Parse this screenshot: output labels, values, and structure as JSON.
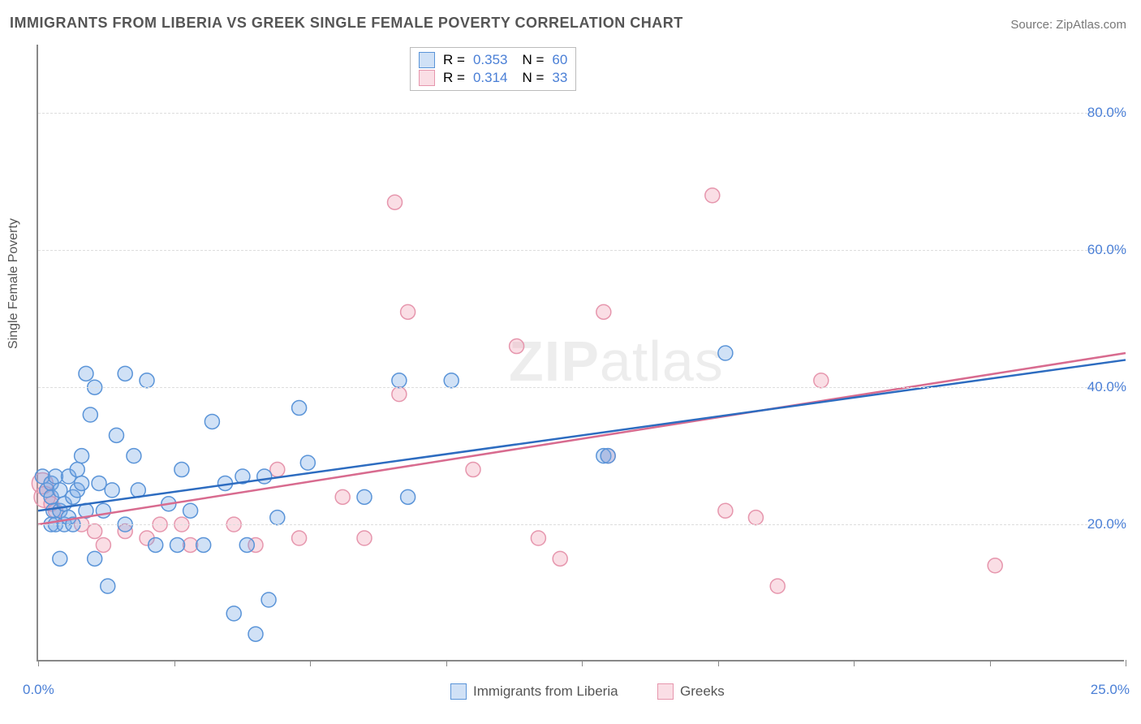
{
  "title": "IMMIGRANTS FROM LIBERIA VS GREEK SINGLE FEMALE POVERTY CORRELATION CHART",
  "source_label": "Source:",
  "source_name": "ZipAtlas.com",
  "watermark_zip": "ZIP",
  "watermark_atlas": "atlas",
  "chart": {
    "type": "scatter",
    "ylabel": "Single Female Poverty",
    "xlim": [
      0,
      25
    ],
    "ylim": [
      0,
      90
    ],
    "y_gridlines": [
      20,
      40,
      60,
      80
    ],
    "y_ticklabels": [
      "20.0%",
      "40.0%",
      "60.0%",
      "80.0%"
    ],
    "x_tick_positions": [
      0,
      3.125,
      6.25,
      9.375,
      12.5,
      15.625,
      18.75,
      21.875,
      25
    ],
    "x_min_label": "0.0%",
    "x_max_label": "25.0%",
    "grid_color": "#dddddd",
    "axis_color": "#888888",
    "background_color": "#ffffff",
    "title_fontsize": 18,
    "label_fontsize": 16,
    "tick_fontsize": 17,
    "tick_color": "#4a7fd6",
    "marker_radius": 9,
    "marker_radius_large": 13,
    "line_width": 2.5,
    "series": [
      {
        "name": "Immigrants from Liberia",
        "fill": "rgba(120,170,230,0.35)",
        "stroke": "#5a94d8",
        "line_color": "#2d6cc0",
        "R": "0.353",
        "N": "60",
        "trend": {
          "x1": 0,
          "y1": 22,
          "x2": 25,
          "y2": 44
        },
        "points": [
          {
            "x": 0.1,
            "y": 27
          },
          {
            "x": 0.2,
            "y": 25
          },
          {
            "x": 0.3,
            "y": 26
          },
          {
            "x": 0.3,
            "y": 24
          },
          {
            "x": 0.3,
            "y": 20
          },
          {
            "x": 0.35,
            "y": 22
          },
          {
            "x": 0.4,
            "y": 27
          },
          {
            "x": 0.4,
            "y": 20
          },
          {
            "x": 0.5,
            "y": 22
          },
          {
            "x": 0.5,
            "y": 25
          },
          {
            "x": 0.5,
            "y": 15
          },
          {
            "x": 0.6,
            "y": 23
          },
          {
            "x": 0.6,
            "y": 20
          },
          {
            "x": 0.7,
            "y": 27
          },
          {
            "x": 0.7,
            "y": 21
          },
          {
            "x": 0.8,
            "y": 24
          },
          {
            "x": 0.8,
            "y": 20
          },
          {
            "x": 0.9,
            "y": 28
          },
          {
            "x": 0.9,
            "y": 25
          },
          {
            "x": 1.0,
            "y": 30
          },
          {
            "x": 1.0,
            "y": 26
          },
          {
            "x": 1.1,
            "y": 42
          },
          {
            "x": 1.1,
            "y": 22
          },
          {
            "x": 1.2,
            "y": 36
          },
          {
            "x": 1.3,
            "y": 40
          },
          {
            "x": 1.3,
            "y": 15
          },
          {
            "x": 1.4,
            "y": 26
          },
          {
            "x": 1.5,
            "y": 22
          },
          {
            "x": 1.6,
            "y": 11
          },
          {
            "x": 1.7,
            "y": 25
          },
          {
            "x": 1.8,
            "y": 33
          },
          {
            "x": 2.0,
            "y": 42
          },
          {
            "x": 2.0,
            "y": 20
          },
          {
            "x": 2.2,
            "y": 30
          },
          {
            "x": 2.3,
            "y": 25
          },
          {
            "x": 2.5,
            "y": 41
          },
          {
            "x": 2.7,
            "y": 17
          },
          {
            "x": 3.0,
            "y": 23
          },
          {
            "x": 3.2,
            "y": 17
          },
          {
            "x": 3.3,
            "y": 28
          },
          {
            "x": 3.5,
            "y": 22
          },
          {
            "x": 3.8,
            "y": 17
          },
          {
            "x": 4.0,
            "y": 35
          },
          {
            "x": 4.3,
            "y": 26
          },
          {
            "x": 4.5,
            "y": 7
          },
          {
            "x": 4.7,
            "y": 27
          },
          {
            "x": 4.8,
            "y": 17
          },
          {
            "x": 5.0,
            "y": 4
          },
          {
            "x": 5.2,
            "y": 27
          },
          {
            "x": 5.3,
            "y": 9
          },
          {
            "x": 5.5,
            "y": 21
          },
          {
            "x": 6.0,
            "y": 37
          },
          {
            "x": 6.2,
            "y": 29
          },
          {
            "x": 7.5,
            "y": 24
          },
          {
            "x": 8.3,
            "y": 41
          },
          {
            "x": 8.5,
            "y": 24
          },
          {
            "x": 9.5,
            "y": 41
          },
          {
            "x": 13.0,
            "y": 30
          },
          {
            "x": 13.1,
            "y": 30
          },
          {
            "x": 15.8,
            "y": 45
          }
        ]
      },
      {
        "name": "Greeks",
        "fill": "rgba(240,160,180,0.35)",
        "stroke": "#e696ad",
        "line_color": "#d86b8f",
        "R": "0.314",
        "N": "33",
        "trend": {
          "x1": 0,
          "y1": 20,
          "x2": 25,
          "y2": 45
        },
        "points": [
          {
            "x": 0.1,
            "y": 26,
            "r": 13
          },
          {
            "x": 0.15,
            "y": 24,
            "r": 13
          },
          {
            "x": 0.3,
            "y": 23
          },
          {
            "x": 0.4,
            "y": 22
          },
          {
            "x": 1.0,
            "y": 20
          },
          {
            "x": 1.3,
            "y": 19
          },
          {
            "x": 1.5,
            "y": 17
          },
          {
            "x": 2.0,
            "y": 19
          },
          {
            "x": 2.5,
            "y": 18
          },
          {
            "x": 2.8,
            "y": 20
          },
          {
            "x": 3.3,
            "y": 20
          },
          {
            "x": 3.5,
            "y": 17
          },
          {
            "x": 4.5,
            "y": 20
          },
          {
            "x": 5.0,
            "y": 17
          },
          {
            "x": 5.5,
            "y": 28
          },
          {
            "x": 6.0,
            "y": 18
          },
          {
            "x": 7.0,
            "y": 24
          },
          {
            "x": 7.5,
            "y": 18
          },
          {
            "x": 8.2,
            "y": 67
          },
          {
            "x": 8.3,
            "y": 39
          },
          {
            "x": 8.5,
            "y": 51
          },
          {
            "x": 10.0,
            "y": 28
          },
          {
            "x": 11.0,
            "y": 46
          },
          {
            "x": 11.5,
            "y": 18
          },
          {
            "x": 12.0,
            "y": 15
          },
          {
            "x": 13.0,
            "y": 51
          },
          {
            "x": 13.1,
            "y": 30
          },
          {
            "x": 15.5,
            "y": 68
          },
          {
            "x": 15.8,
            "y": 22
          },
          {
            "x": 16.5,
            "y": 21
          },
          {
            "x": 17.0,
            "y": 11
          },
          {
            "x": 18.0,
            "y": 41
          },
          {
            "x": 22.0,
            "y": 14
          }
        ]
      }
    ],
    "bottom_legend": [
      {
        "swatch_fill": "rgba(120,170,230,0.35)",
        "swatch_stroke": "#5a94d8",
        "label": "Immigrants from Liberia"
      },
      {
        "swatch_fill": "rgba(240,160,180,0.35)",
        "swatch_stroke": "#e696ad",
        "label": "Greeks"
      }
    ]
  }
}
